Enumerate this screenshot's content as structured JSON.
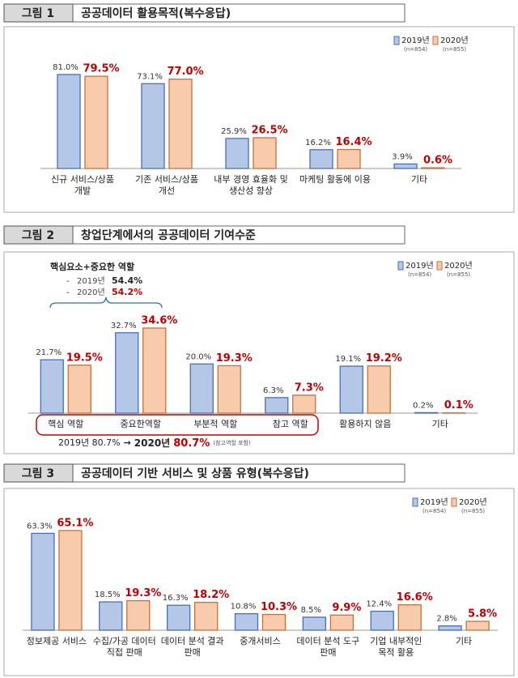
{
  "chart_data": [
    {
      "type": "bar",
      "figure_label": "그림 1",
      "title": "공공데이터 활용목적(복수응답)",
      "categories": [
        "신규 서비스/상품\n개발",
        "기존 서비스/상품\n개선",
        "내부 경영 효율화 및\n생산성 향상",
        "마케팅 활동에 이용",
        "기타"
      ],
      "series": [
        {
          "name": "2019년",
          "note": "(n=854)",
          "color": "#b4c7e7",
          "values": [
            81.0,
            73.1,
            25.9,
            16.2,
            3.9
          ],
          "value_labels": [
            "81.0%",
            "73.1%",
            "25.9%",
            "16.2%",
            "3.9%"
          ]
        },
        {
          "name": "2020년",
          "note": "(n=855)",
          "color": "#f8cbad",
          "values": [
            79.5,
            77.0,
            26.5,
            16.4,
            0.6
          ],
          "value_labels": [
            "79.5%",
            "77.0%",
            "26.5%",
            "16.4%",
            "0.6%"
          ]
        }
      ]
    },
    {
      "type": "bar",
      "figure_label": "그림 2",
      "title": "창업단계에서의 공공데이터 기여수준",
      "categories": [
        "핵심 역할",
        "중요한역할",
        "부분적 역할",
        "참고 역할",
        "활용하지 않음",
        "기타"
      ],
      "series": [
        {
          "name": "2019년",
          "note": "(n=854)",
          "color": "#b4c7e7",
          "values": [
            21.7,
            32.7,
            20.0,
            6.3,
            19.1,
            0.2
          ],
          "value_labels": [
            "21.7%",
            "32.7%",
            "20.0%",
            "6.3%",
            "19.1%",
            "0.2%"
          ]
        },
        {
          "name": "2020년",
          "note": "(n=855)",
          "color": "#f8cbad",
          "values": [
            19.5,
            34.6,
            19.3,
            7.3,
            19.2,
            0.1
          ],
          "value_labels": [
            "19.5%",
            "34.6%",
            "19.3%",
            "7.3%",
            "19.2%",
            "0.1%"
          ]
        }
      ],
      "annotations": {
        "heading": "핵심요소+중요한 역할",
        "lines": [
          [
            "-",
            "2019년",
            "54.4%"
          ],
          [
            "-",
            "2020년",
            "54.2%"
          ]
        ],
        "footer": [
          "2019년 80.7%",
          "→",
          "2020년",
          "80.7%",
          "(참고역할 포함)"
        ]
      }
    },
    {
      "type": "bar",
      "figure_label": "그림 3",
      "title": "공공데이터 기반 서비스 및 상품 유형(복수응답)",
      "categories": [
        "정보제공 서비스",
        "수집/가공 데이터\n직접 판매",
        "데이터 분석 결과\n판매",
        "중개서비스",
        "데이터 분석 도구\n판매",
        "기업 내부적인\n목적 활용",
        "기타"
      ],
      "series": [
        {
          "name": "2019년",
          "note": "(n=854)",
          "color": "#b4c7e7",
          "values": [
            63.3,
            18.5,
            16.3,
            10.8,
            8.5,
            12.4,
            2.8
          ],
          "value_labels": [
            "63.3%",
            "18.5%",
            "16.3%",
            "10.8%",
            "8.5%",
            "12.4%",
            "2.8%"
          ]
        },
        {
          "name": "2020년",
          "note": "(n=855)",
          "color": "#f8cbad",
          "values": [
            65.1,
            19.3,
            18.2,
            10.3,
            9.9,
            16.6,
            5.8
          ],
          "value_labels": [
            "65.1%",
            "19.3%",
            "18.2%",
            "10.3%",
            "9.9%",
            "16.6%",
            "5.8%"
          ]
        }
      ]
    }
  ]
}
